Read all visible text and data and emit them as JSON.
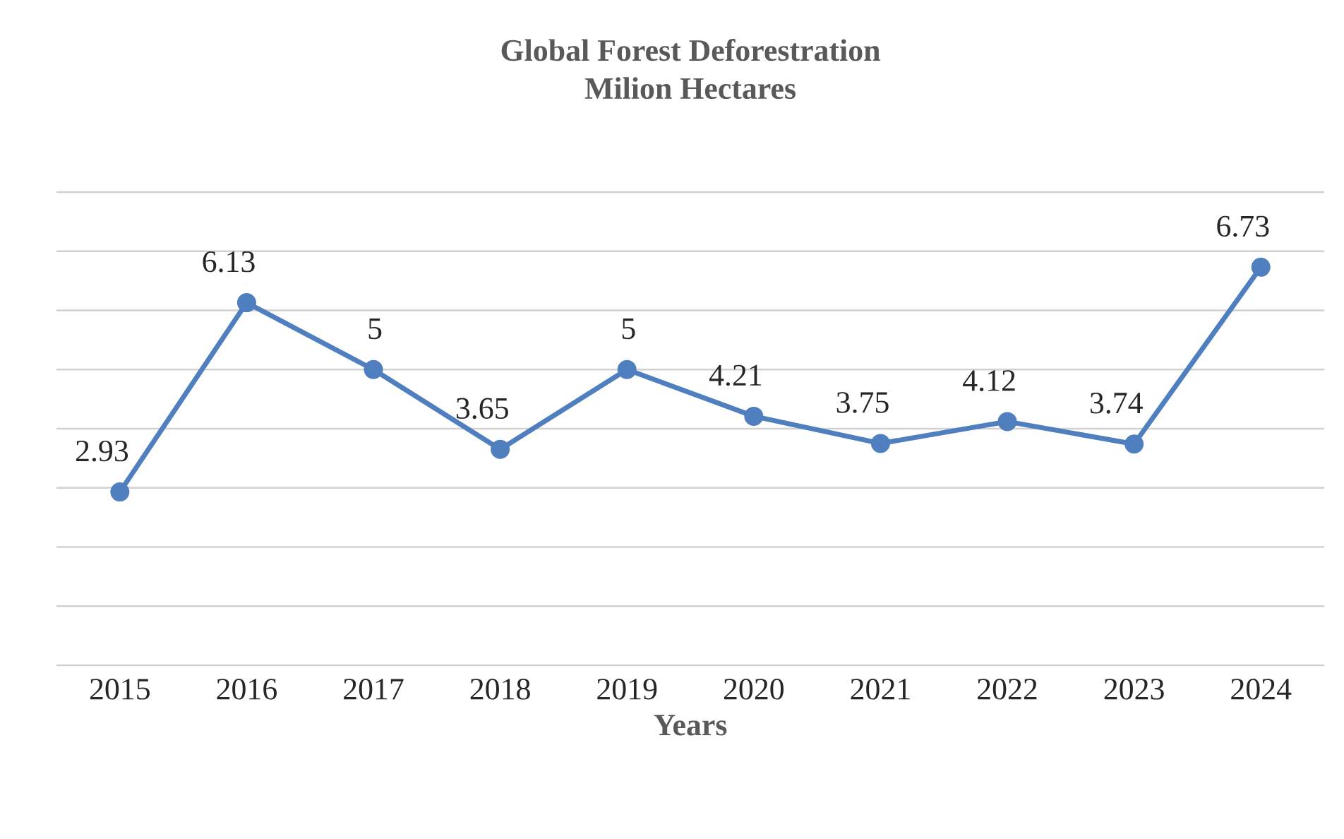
{
  "chart_data": {
    "type": "line",
    "title": "Global Forest Deforestration",
    "subtitle": "Milion Hectares",
    "xlabel": "Years",
    "categories": [
      "2015",
      "2016",
      "2017",
      "2018",
      "2019",
      "2020",
      "2021",
      "2022",
      "2023",
      "2024"
    ],
    "values": [
      2.93,
      6.13,
      5,
      3.65,
      5,
      4.21,
      3.75,
      4.12,
      3.74,
      6.73
    ],
    "color": "#4f7fbe",
    "ylim": [
      0,
      8
    ],
    "yticks": [
      {
        "value": 0,
        "label": null
      },
      {
        "value": 1,
        "label": null
      },
      {
        "value": 2,
        "label": null
      },
      {
        "value": 3,
        "label": null
      },
      {
        "value": 4,
        "label": null
      },
      {
        "value": 5,
        "label": null
      },
      {
        "value": 6,
        "label": null
      },
      {
        "value": 7,
        "label": null
      },
      {
        "value": 8,
        "label": null
      }
    ],
    "tick_labels": "x",
    "grid": "y",
    "marker": "circle",
    "line_style": "solid",
    "data_labels": true
  }
}
